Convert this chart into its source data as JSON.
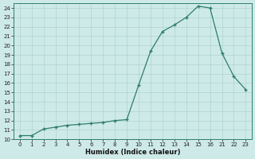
{
  "x_data": [
    0,
    1,
    2,
    3,
    4,
    5,
    6,
    7,
    8,
    9,
    10,
    11,
    12,
    13,
    14,
    15,
    16,
    17,
    18,
    19
  ],
  "y_data": [
    10.4,
    10.4,
    11.1,
    11.3,
    11.5,
    11.6,
    11.7,
    11.8,
    12.0,
    12.1,
    15.8,
    19.4,
    21.5,
    22.2,
    23.0,
    24.2,
    24.0,
    19.2,
    16.7,
    15.3
  ],
  "xtick_positions": [
    0,
    1,
    2,
    3,
    4,
    5,
    6,
    7,
    8,
    9,
    10,
    11,
    12,
    13,
    14,
    15,
    16,
    17,
    18,
    19
  ],
  "xtick_labels": [
    "0",
    "1",
    "2",
    "3",
    "4",
    "5",
    "6",
    "7",
    "8",
    "9",
    "10",
    "11",
    "12",
    "13",
    "14",
    "15",
    "16",
    "21",
    "22",
    "23"
  ],
  "xlim": [
    -0.5,
    19.5
  ],
  "ylim": [
    10,
    24.5
  ],
  "yticks": [
    10,
    11,
    12,
    13,
    14,
    15,
    16,
    17,
    18,
    19,
    20,
    21,
    22,
    23,
    24
  ],
  "xlabel": "Humidex (Indice chaleur)",
  "line_color": "#2d7d6e",
  "bg_color": "#ceeae8",
  "grid_color": "#aed4d0"
}
